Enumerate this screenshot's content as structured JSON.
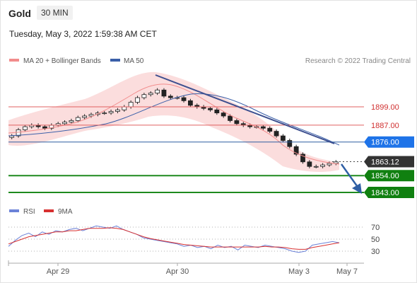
{
  "header": {
    "symbol": "Gold",
    "timeframe": "30 MIN",
    "datetime": "Tuesday, May 3, 2022 1:59:38 AM CET"
  },
  "legend": {
    "bollinger_label": "MA 20 + Bollinger Bands",
    "ma50_label": "MA 50",
    "copyright": "Research © 2022 Trading Central",
    "rsi_label": "RSI",
    "rsi_ma_label": "9MA"
  },
  "colors": {
    "bollinger": "#f28c8c",
    "band_fill": "#fbd9d9",
    "ma50": "#3a5fa8",
    "resistance": "#e06060",
    "pivot": "#2e5fa0",
    "pivot_badge": "#1e73e8",
    "support": "#1e8a1e",
    "support_badge": "#108010",
    "last_badge": "#333333",
    "candle_up": "#ffffff",
    "candle_down": "#222222",
    "trend": "#3d4f8f",
    "arrow": "#2f5fa5",
    "rsi": "#6b82d8",
    "rsi_ma": "#d83030"
  },
  "chart_data": {
    "type": "candlestick",
    "x_tick_labels": [
      "Apr 29",
      "Apr 30",
      "May 3",
      "May 7"
    ],
    "price_levels": [
      {
        "label": "1899.00",
        "value": 1899.0,
        "kind": "resistance"
      },
      {
        "label": "1887.00",
        "value": 1887.0,
        "kind": "resistance"
      },
      {
        "label": "1876.00",
        "value": 1876.0,
        "kind": "pivot"
      },
      {
        "label": "1863.12",
        "value": 1863.12,
        "kind": "last"
      },
      {
        "label": "1854.00",
        "value": 1854.0,
        "kind": "support"
      },
      {
        "label": "1843.00",
        "value": 1843.0,
        "kind": "support"
      }
    ],
    "y_range": [
      1840,
      1915
    ],
    "candles_close": [
      1880,
      1884,
      1886,
      1887,
      1886,
      1885,
      1887,
      1888,
      1889,
      1890,
      1892,
      1893,
      1894,
      1895,
      1895,
      1896,
      1897,
      1899,
      1902,
      1905,
      1907,
      1908,
      1910,
      1906,
      1905,
      1905,
      1903,
      1900,
      1899,
      1898,
      1897,
      1895,
      1893,
      1890,
      1888,
      1887,
      1886,
      1886,
      1885,
      1883,
      1880,
      1877,
      1873,
      1868,
      1863,
      1860,
      1860,
      1861,
      1862,
      1863
    ],
    "rsi": {
      "levels": [
        70,
        50,
        30
      ],
      "rsi_values": [
        38,
        48,
        56,
        60,
        54,
        62,
        58,
        64,
        62,
        66,
        68,
        64,
        68,
        72,
        70,
        68,
        72,
        66,
        62,
        58,
        52,
        50,
        48,
        46,
        44,
        42,
        38,
        40,
        36,
        38,
        34,
        40,
        36,
        38,
        32,
        40,
        38,
        36,
        40,
        38,
        36,
        34,
        30,
        28,
        30,
        40,
        42,
        44,
        46,
        44
      ],
      "ma_values": [
        42,
        46,
        50,
        54,
        56,
        58,
        60,
        62,
        62,
        64,
        64,
        66,
        68,
        68,
        68,
        69,
        68,
        66,
        62,
        58,
        54,
        51,
        49,
        47,
        45,
        43,
        41,
        40,
        39,
        38,
        37,
        37,
        37,
        37,
        37,
        37,
        37,
        37,
        38,
        37,
        37,
        36,
        34,
        33,
        33,
        36,
        38,
        40,
        42,
        44
      ]
    }
  }
}
